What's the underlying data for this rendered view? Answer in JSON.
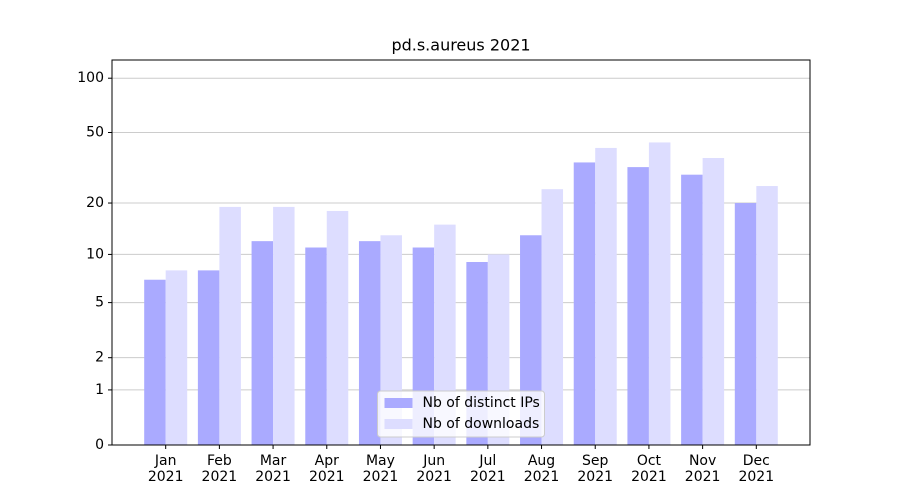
{
  "chart_data": {
    "type": "bar",
    "title": "pd.s.aureus 2021",
    "categories": [
      "Jan\n2021",
      "Feb\n2021",
      "Mar\n2021",
      "Apr\n2021",
      "May\n2021",
      "Jun\n2021",
      "Jul\n2021",
      "Aug\n2021",
      "Sep\n2021",
      "Oct\n2021",
      "Nov\n2021",
      "Dec\n2021"
    ],
    "series": [
      {
        "name": "Nb of distinct IPs",
        "color": "#aaaaff",
        "values": [
          7,
          8,
          12,
          11,
          12,
          11,
          9,
          13,
          34,
          32,
          29,
          20
        ]
      },
      {
        "name": "Nb of downloads",
        "color": "#ddddff",
        "values": [
          8,
          19,
          19,
          18,
          13,
          15,
          10,
          24,
          41,
          44,
          36,
          25
        ]
      }
    ],
    "yscale": "log1p",
    "ylim": [
      0,
      126
    ],
    "yticks": [
      0,
      1,
      2,
      5,
      10,
      20,
      50,
      100
    ],
    "grid": true,
    "legend": "lower center"
  }
}
